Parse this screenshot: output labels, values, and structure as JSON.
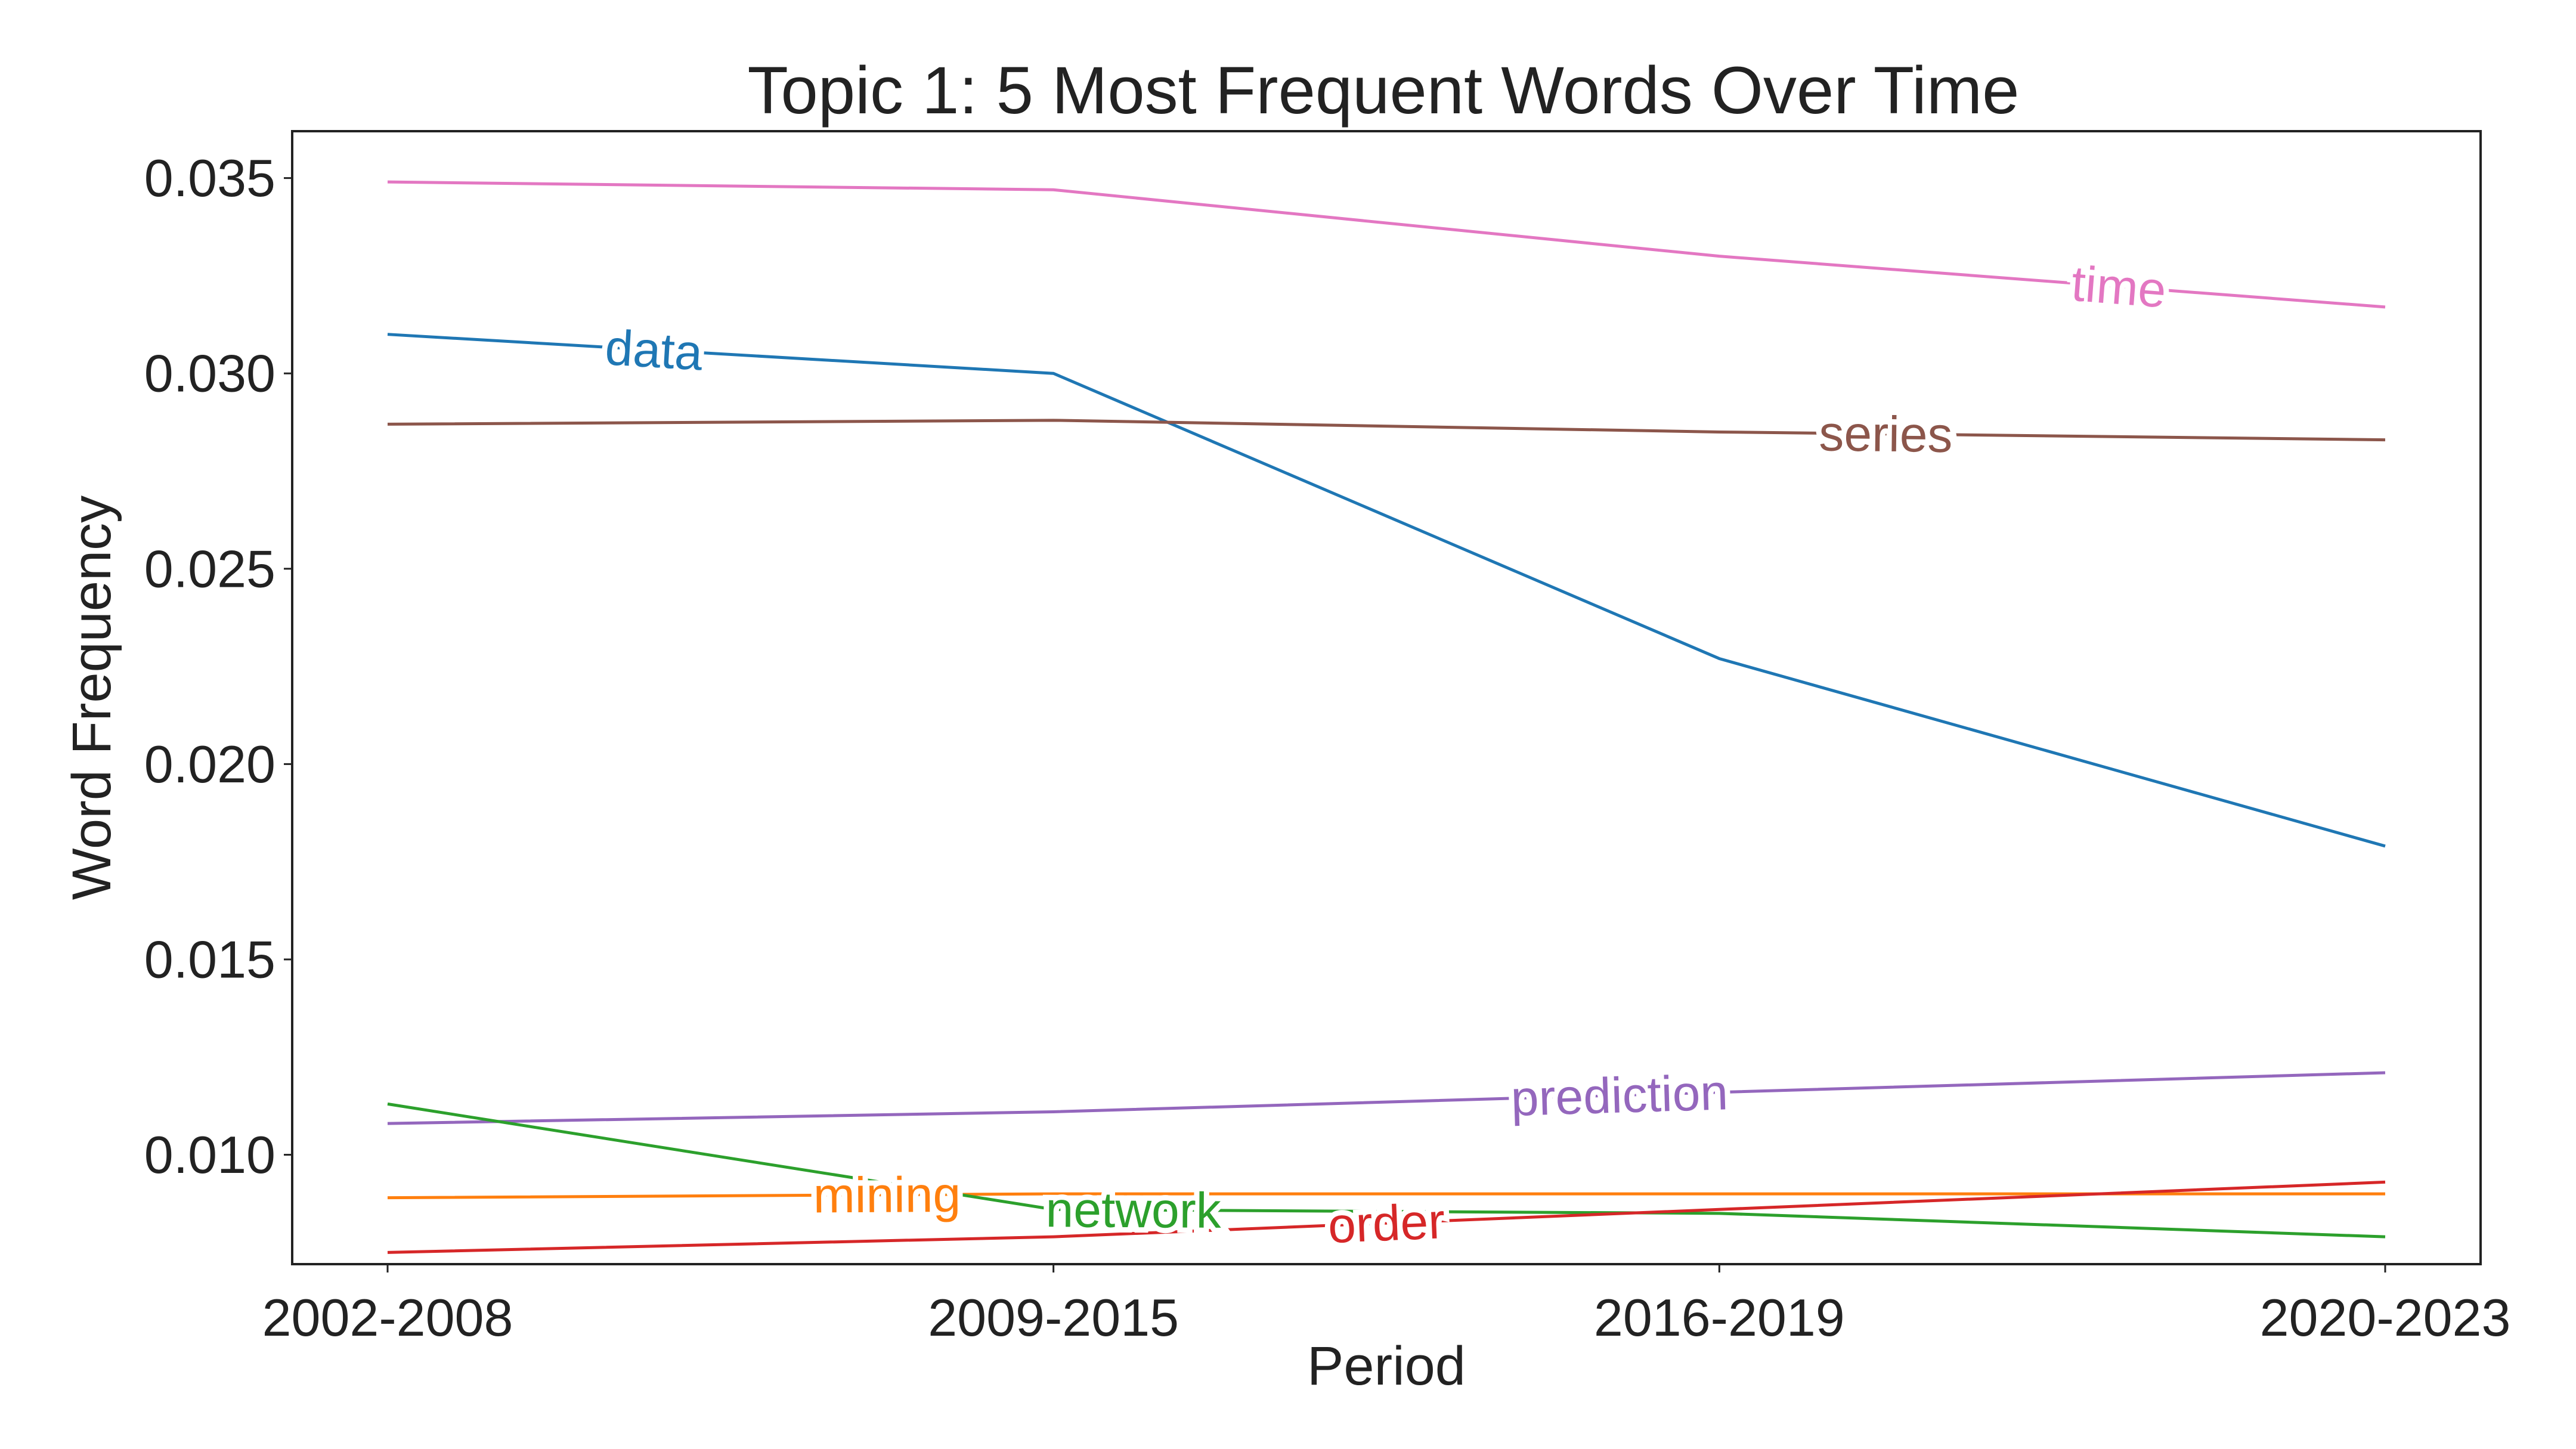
{
  "chart_data": {
    "type": "line",
    "title": "Topic 1: 5 Most Frequent Words Over Time",
    "xlabel": "Period",
    "ylabel": "Word Frequency",
    "categories": [
      "2002-2008",
      "2009-2015",
      "2016-2019",
      "2020-2023"
    ],
    "ylim": [
      0.0072,
      0.0362
    ],
    "yticks": [
      0.01,
      0.015,
      0.02,
      0.025,
      0.03,
      0.035
    ],
    "ytick_labels": [
      "0.010",
      "0.015",
      "0.020",
      "0.025",
      "0.030",
      "0.035"
    ],
    "grid": false,
    "legend": "inline labels on lines",
    "series": [
      {
        "name": "time",
        "values": [
          0.0349,
          0.0347,
          0.033,
          0.0317
        ],
        "color": "#e377c2",
        "label_at": 2.6
      },
      {
        "name": "data",
        "values": [
          0.031,
          0.03,
          0.0227,
          0.0179
        ],
        "color": "#1f77b4",
        "label_at": 0.4
      },
      {
        "name": "series",
        "values": [
          0.0287,
          0.0288,
          0.0285,
          0.0283
        ],
        "color": "#8c564b",
        "label_at": 2.25
      },
      {
        "name": "prediction",
        "values": [
          0.0108,
          0.0111,
          0.0116,
          0.0121
        ],
        "color": "#9467bd",
        "label_at": 1.85
      },
      {
        "name": "mining",
        "values": [
          0.0089,
          0.009,
          0.009,
          0.009
        ],
        "color": "#ff7f0e",
        "label_at": 0.75
      },
      {
        "name": "network",
        "values": [
          0.0113,
          0.0086,
          0.0085,
          0.0079
        ],
        "color": "#2ca02c",
        "label_at": 1.12
      },
      {
        "name": "order",
        "values": [
          0.0075,
          0.0079,
          0.0086,
          0.0093
        ],
        "color": "#d62728",
        "label_at": 1.5
      }
    ]
  }
}
